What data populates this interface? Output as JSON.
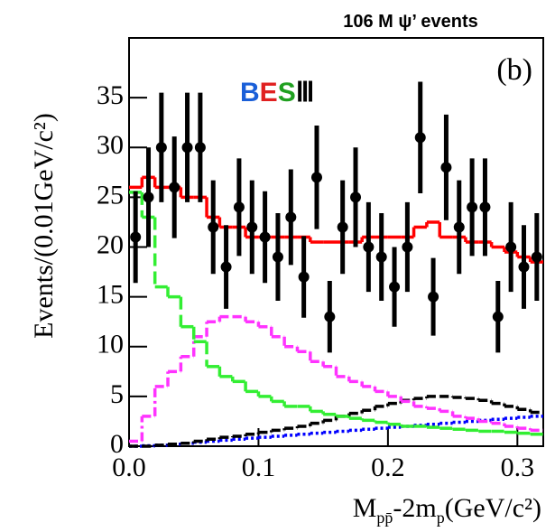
{
  "chart_data": {
    "type": "histfit",
    "title": "106 M ψ’ events",
    "annotation": "(b)",
    "logo": [
      "B",
      "E",
      "S",
      "Ⅲ"
    ],
    "x_label": [
      "M",
      "pp̄",
      "-2m",
      "p",
      "(GeV/c²)"
    ],
    "y_label": "Events/(0.01GeV/c²)",
    "bins": [
      0,
      0.01,
      0.02,
      0.03,
      0.04,
      0.05,
      0.06,
      0.07,
      0.08,
      0.09,
      0.1,
      0.11,
      0.12,
      0.13,
      0.14,
      0.15,
      0.16,
      0.17,
      0.18,
      0.19,
      0.2,
      0.21,
      0.22,
      0.23,
      0.24,
      0.25,
      0.26,
      0.27,
      0.28,
      0.29,
      0.3,
      0.31,
      0.32
    ],
    "xlim": [
      0,
      0.32
    ],
    "xticks": [
      {
        "value": 0,
        "label": "0.0"
      },
      0.1,
      0.2,
      0.3
    ],
    "ylim": [
      0,
      41
    ],
    "yticks": [
      0,
      5,
      10,
      15,
      20,
      25,
      30,
      35
    ],
    "points": {
      "color": "#000000",
      "values": [
        21,
        25,
        30,
        26,
        30,
        30,
        22,
        18,
        24,
        22,
        21,
        19,
        23,
        17,
        27,
        13,
        22,
        25,
        20,
        19,
        16,
        20,
        31,
        15,
        28,
        22,
        24,
        24,
        13,
        20,
        18,
        19
      ],
      "errors": [
        4.6,
        5,
        5.5,
        5.1,
        5.5,
        5.5,
        4.7,
        4.2,
        4.9,
        4.7,
        4.6,
        4.4,
        4.8,
        4.1,
        5.2,
        3.6,
        4.7,
        5,
        4.5,
        4.4,
        4,
        4.5,
        5.6,
        3.9,
        5.3,
        4.7,
        4.9,
        4.9,
        3.6,
        4.5,
        4.2,
        4.4
      ]
    },
    "curves": [
      {
        "color": "#0000ff",
        "linestyle": "dotted",
        "values": [
          0,
          0.05,
          0.1,
          0.2,
          0.3,
          0.4,
          0.5,
          0.6,
          0.7,
          0.8,
          0.9,
          1,
          1.1,
          1.2,
          1.3,
          1.4,
          1.5,
          1.6,
          1.7,
          1.8,
          1.9,
          2,
          2.1,
          2.2,
          2.3,
          2.4,
          2.5,
          2.6,
          2.7,
          2.8,
          2.9,
          3
        ]
      },
      {
        "color": "#000000",
        "linestyle": "dashdot",
        "values": [
          0,
          0,
          0.1,
          0.2,
          0.3,
          0.5,
          0.7,
          0.9,
          1,
          1.2,
          1.4,
          1.6,
          1.8,
          2,
          2.3,
          2.6,
          3,
          3.3,
          3.6,
          4,
          4.3,
          4.6,
          4.8,
          5,
          5,
          4.9,
          4.8,
          4.6,
          4.3,
          4,
          3.7,
          3.4
        ]
      },
      {
        "color": "#ff33ff",
        "linestyle": "dashdot",
        "values": [
          0.5,
          3,
          6,
          7.5,
          9,
          11,
          12.5,
          13,
          13,
          12.5,
          12,
          11,
          10,
          9.5,
          8.5,
          8,
          7,
          6.5,
          6,
          5.5,
          5,
          4.5,
          4,
          3.8,
          3.5,
          3,
          2.8,
          2.5,
          2.3,
          2,
          1.8,
          1.6
        ]
      },
      {
        "color": "#33ee33",
        "linestyle": "dashed",
        "values": [
          25.5,
          23,
          16,
          15,
          12,
          10.5,
          8,
          7,
          6.5,
          5.5,
          5,
          4.5,
          4,
          4,
          3.5,
          3.2,
          3,
          2.8,
          2.6,
          2.4,
          2.2,
          2,
          2,
          1.9,
          1.8,
          1.7,
          1.6,
          1.5,
          1.5,
          1.4,
          1.3,
          1.2
        ]
      },
      {
        "color": "#ff0000",
        "linestyle": "solid",
        "values": [
          26,
          27,
          26,
          26,
          25,
          25,
          23,
          22,
          22,
          21,
          21,
          21,
          21,
          21,
          20.5,
          20.5,
          20.5,
          20.5,
          21,
          21,
          21,
          21,
          22,
          22.5,
          21,
          21,
          20.5,
          20.5,
          20,
          19.5,
          19,
          18.5
        ]
      }
    ]
  }
}
